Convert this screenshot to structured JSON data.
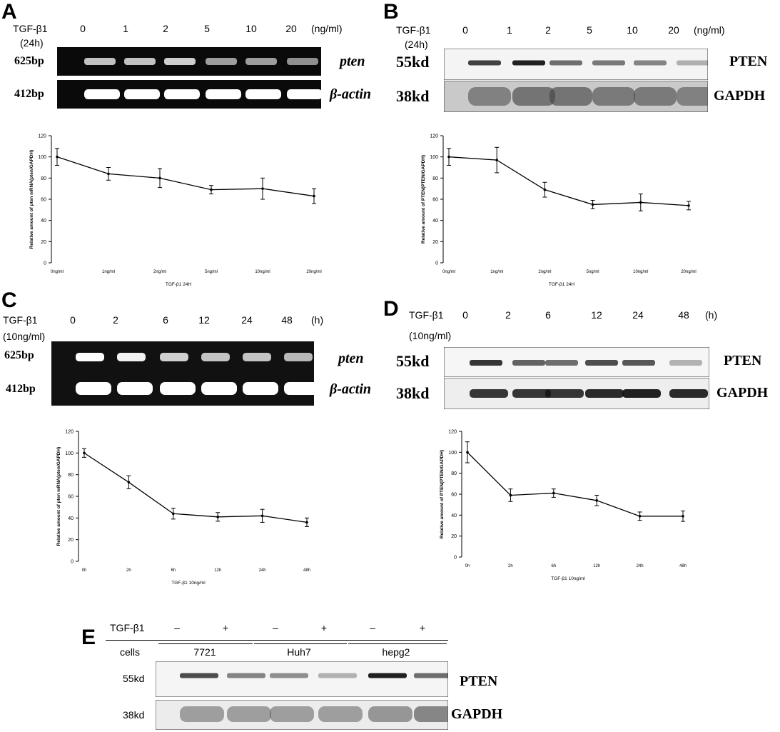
{
  "panels": {
    "A": {
      "letter": "A",
      "treatment_label": "TGF-β1",
      "condition_label": "(24h)",
      "lanes": [
        "0",
        "1",
        "2",
        "5",
        "10",
        "20"
      ],
      "unit": "(ng/ml)",
      "gel_rows": [
        {
          "size": "625bp",
          "marker": "pten",
          "italic": true
        },
        {
          "size": "412bp",
          "marker": "β-actin",
          "italic": true
        }
      ]
    },
    "B": {
      "letter": "B",
      "treatment_label": "TGF-β1",
      "condition_label": "(24h)",
      "lanes": [
        "0",
        "1",
        "2",
        "5",
        "10",
        "20"
      ],
      "unit": "(ng/ml)",
      "gel_rows": [
        {
          "size": "55kd",
          "marker": "PTEN",
          "italic": false
        },
        {
          "size": "38kd",
          "marker": "GAPDH",
          "italic": false
        }
      ]
    },
    "C": {
      "letter": "C",
      "treatment_label": "TGF-β1",
      "condition_label": "(10ng/ml)",
      "lanes": [
        "0",
        "2",
        "6",
        "12",
        "24",
        "48"
      ],
      "unit": "(h)",
      "gel_rows": [
        {
          "size": "625bp",
          "marker": "pten",
          "italic": true
        },
        {
          "size": "412bp",
          "marker": "β-actin",
          "italic": true
        }
      ]
    },
    "D": {
      "letter": "D",
      "treatment_label": "TGF-β1",
      "condition_label": "(10ng/ml)",
      "lanes": [
        "0",
        "2",
        "6",
        "12",
        "24",
        "48"
      ],
      "unit": "(h)",
      "gel_rows": [
        {
          "size": "55kd",
          "marker": "PTEN",
          "italic": false
        },
        {
          "size": "38kd",
          "marker": "GAPDH",
          "italic": false
        }
      ]
    },
    "E": {
      "letter": "E",
      "treatment_label": "TGF-β1",
      "treatment": [
        "–",
        "+",
        "–",
        "+",
        "–",
        "+"
      ],
      "cells_label": "cells",
      "cell_lines": [
        "7721",
        "Huh7",
        "hepg2"
      ],
      "gel_rows": [
        {
          "size": "55kd",
          "marker": "PTEN"
        },
        {
          "size": "38kd",
          "marker": "GAPDH"
        }
      ]
    }
  },
  "chart_data": [
    {
      "panel": "A",
      "type": "line",
      "categories": [
        "0ng/ml",
        "1ng/ml",
        "2ng/ml",
        "5ng/ml",
        "10ng/ml",
        "20ng/ml"
      ],
      "values": [
        100,
        84,
        80,
        69,
        70,
        63
      ],
      "errors": [
        8,
        6,
        9,
        4,
        10,
        7
      ],
      "xlabel": "TGF-β1 24H",
      "ylabel": "Relative amount of pten mRNA(pten/GAPDH)",
      "ylim": [
        0,
        120
      ],
      "yticks": [
        0,
        20,
        40,
        60,
        80,
        100,
        120
      ]
    },
    {
      "panel": "B",
      "type": "line",
      "categories": [
        "0ng/ml",
        "1ng/ml",
        "2ng/ml",
        "5ng/ml",
        "10ng/ml",
        "20ng/ml"
      ],
      "values": [
        100,
        97,
        69,
        55,
        57,
        54
      ],
      "errors": [
        8,
        12,
        7,
        4,
        8,
        4
      ],
      "xlabel": "TGF-β1 24H",
      "ylabel": "Relative amount of PTEN(PTEN/GAPDH)",
      "ylim": [
        0,
        120
      ],
      "yticks": [
        0,
        20,
        40,
        60,
        80,
        100,
        120
      ]
    },
    {
      "panel": "C",
      "type": "line",
      "categories": [
        "0h",
        "2h",
        "6h",
        "12h",
        "24h",
        "48h"
      ],
      "values": [
        100,
        73,
        44,
        41,
        42,
        36
      ],
      "errors": [
        4,
        6,
        5,
        4,
        6,
        4
      ],
      "xlabel": "TGF-β1 10ng/ml",
      "ylabel": "Relative amount of pten mRNA(pten/GAPDH)",
      "ylim": [
        0,
        120
      ],
      "yticks": [
        0,
        20,
        40,
        60,
        80,
        100,
        120
      ]
    },
    {
      "panel": "D",
      "type": "line",
      "categories": [
        "0h",
        "2h",
        "6h",
        "12h",
        "24h",
        "48h"
      ],
      "values": [
        100,
        59,
        61,
        54,
        39,
        39
      ],
      "errors": [
        10,
        6,
        4,
        5,
        4,
        5
      ],
      "xlabel": "TGF-β1 10ng/ml",
      "ylabel": "Relative amount of PTEN(PTEN/GAPDH)",
      "ylim": [
        0,
        120
      ],
      "yticks": [
        0,
        20,
        40,
        60,
        80,
        100,
        120
      ]
    }
  ],
  "band_intensity": {
    "A_pten": [
      0.75,
      0.75,
      0.8,
      0.6,
      0.6,
      0.55
    ],
    "A_actin": [
      1,
      1,
      1,
      1,
      1,
      1
    ],
    "B_pten": [
      0.8,
      0.95,
      0.6,
      0.55,
      0.5,
      0.3
    ],
    "B_gapdh": [
      0.55,
      0.65,
      0.65,
      0.6,
      0.6,
      0.55
    ],
    "C_pten": [
      1,
      0.95,
      0.8,
      0.75,
      0.75,
      0.7
    ],
    "C_actin": [
      1,
      1,
      1,
      1,
      1,
      1
    ],
    "D_pten": [
      0.85,
      0.65,
      0.6,
      0.75,
      0.7,
      0.3
    ],
    "D_gapdh": [
      0.85,
      0.85,
      0.85,
      0.9,
      0.95,
      0.9
    ],
    "E_pten": [
      0.75,
      0.5,
      0.45,
      0.3,
      0.95,
      0.6
    ],
    "E_gapdh": [
      0.5,
      0.5,
      0.5,
      0.5,
      0.55,
      0.65
    ]
  }
}
